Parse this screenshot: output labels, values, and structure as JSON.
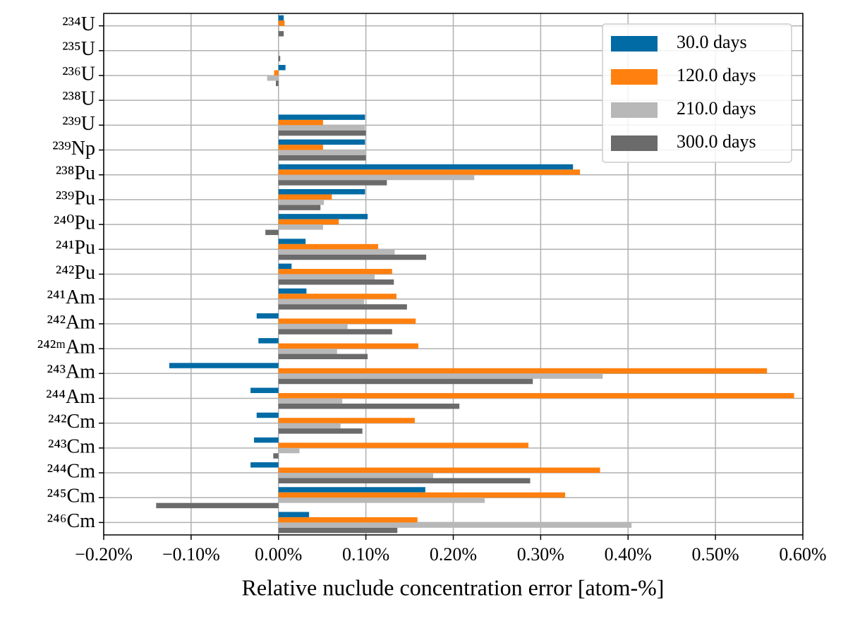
{
  "chart_data": {
    "type": "hbar",
    "xlabel": "Relative nuclude concentration error [atom-%]",
    "categories": [
      "²³⁴U",
      "²³⁵U",
      "²³⁶U",
      "²³⁸U",
      "²³⁹U",
      "²³⁹Np",
      "²³⁸Pu",
      "²³⁹Pu",
      "²⁴⁰Pu",
      "²⁴¹Pu",
      "²⁴²Pu",
      "²⁴¹Am",
      "²⁴²Am",
      "²⁴²ᵐAm",
      "²⁴³Am",
      "²⁴⁴Am",
      "²⁴²Cm",
      "²⁴³Cm",
      "²⁴⁴Cm",
      "²⁴⁵Cm",
      "²⁴⁶Cm"
    ],
    "series": [
      {
        "name": "30.0 days",
        "color": "#006ba4",
        "values": [
          0.006,
          0,
          0.008,
          0,
          0.099,
          0.099,
          0.337,
          0.099,
          0.102,
          0.031,
          0.015,
          0.032,
          -0.025,
          -0.023,
          -0.125,
          -0.032,
          -0.025,
          -0.028,
          -0.032,
          0.168,
          0.035
        ]
      },
      {
        "name": "120.0 days",
        "color": "#ff800e",
        "values": [
          0.007,
          0,
          -0.005,
          0,
          0.051,
          0.051,
          0.345,
          0.061,
          0.069,
          0.114,
          0.13,
          0.135,
          0.157,
          0.16,
          0.559,
          0.59,
          0.156,
          0.286,
          0.368,
          0.328,
          0.159
        ]
      },
      {
        "name": "210.0 days",
        "color": "#b8b8b8",
        "values": [
          0.001,
          0.001,
          -0.013,
          0,
          0.099,
          0.1,
          0.224,
          0.052,
          0.051,
          0.133,
          0.11,
          0.098,
          0.079,
          0.067,
          0.371,
          0.073,
          0.071,
          0.024,
          0.177,
          0.236,
          0.404
        ]
      },
      {
        "name": "300.0 days",
        "color": "#6b6b6b",
        "values": [
          0.006,
          0.002,
          -0.003,
          0,
          0.1,
          0.1,
          0.124,
          0.048,
          -0.015,
          0.169,
          0.132,
          0.147,
          0.13,
          0.102,
          0.291,
          0.207,
          0.096,
          -0.006,
          0.288,
          -0.14,
          0.136
        ]
      }
    ],
    "xlim": [
      -0.2,
      0.6
    ],
    "xticks": [
      {
        "value": -0.2,
        "label": "−0.20%"
      },
      {
        "value": -0.1,
        "label": "−0.10%"
      },
      {
        "value": 0,
        "label": "0.00%"
      },
      {
        "value": 0.1,
        "label": "0.10%"
      },
      {
        "value": 0.2,
        "label": "0.20%"
      },
      {
        "value": 0.3,
        "label": "0.30%"
      },
      {
        "value": 0.4,
        "label": "0.40%"
      },
      {
        "value": 0.5,
        "label": "0.50%"
      },
      {
        "value": 0.6,
        "label": "0.60%"
      }
    ],
    "grid": true,
    "legend": "upper right"
  }
}
